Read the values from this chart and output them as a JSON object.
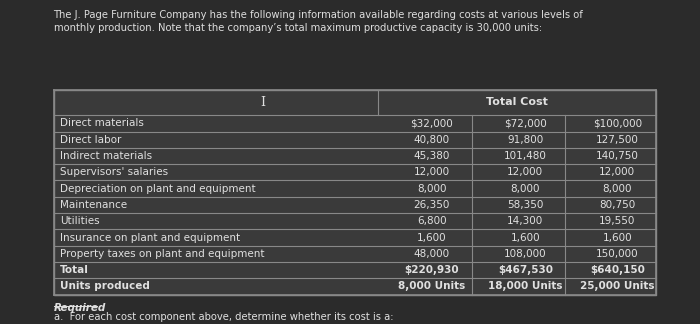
{
  "title": "The J. Page Furniture Company has the following information available regarding costs at various levels of\nmonthly production. Note that the company’s total maximum productive capacity is 30,000 units:",
  "header_label": "Total Cost",
  "col_headers": [
    "",
    "Total Cost",
    "",
    ""
  ],
  "sub_headers": [
    "",
    "8,000 Units",
    "18,000 Units",
    "25,000 Units"
  ],
  "rows": [
    [
      "Direct materials",
      "$32,000",
      "$72,000",
      "$100,000"
    ],
    [
      "Direct labor",
      "40,800",
      "91,800",
      "127,500"
    ],
    [
      "Indirect materials",
      "45,380",
      "101,480",
      "140,750"
    ],
    [
      "Supervisors' salaries",
      "12,000",
      "12,000",
      "12,000"
    ],
    [
      "Depreciation on plant and equipment",
      "8,000",
      "8,000",
      "8,000"
    ],
    [
      "Maintenance",
      "26,350",
      "58,350",
      "80,750"
    ],
    [
      "Utilities",
      "6,800",
      "14,300",
      "19,550"
    ],
    [
      "Insurance on plant and equipment",
      "1,600",
      "1,600",
      "1,600"
    ],
    [
      "Property taxes on plant and equipment",
      "48,000",
      "108,000",
      "150,000"
    ],
    [
      "Total",
      "$220,930",
      "$467,530",
      "$640,150"
    ],
    [
      "Units produced",
      "8,000 Units",
      "18,000 Units",
      "25,000 Units"
    ]
  ],
  "required_text": "Required",
  "required_sub": "a.  For each cost component above, determine whether its cost is a:",
  "bg_color": "#2b2b2b",
  "table_bg": "#3a3a3a",
  "text_color": "#e0e0e0",
  "header_bg": "#3a3a3a",
  "border_color": "#888888",
  "title_color": "#dddddd",
  "bold_rows": [
    9,
    10
  ]
}
